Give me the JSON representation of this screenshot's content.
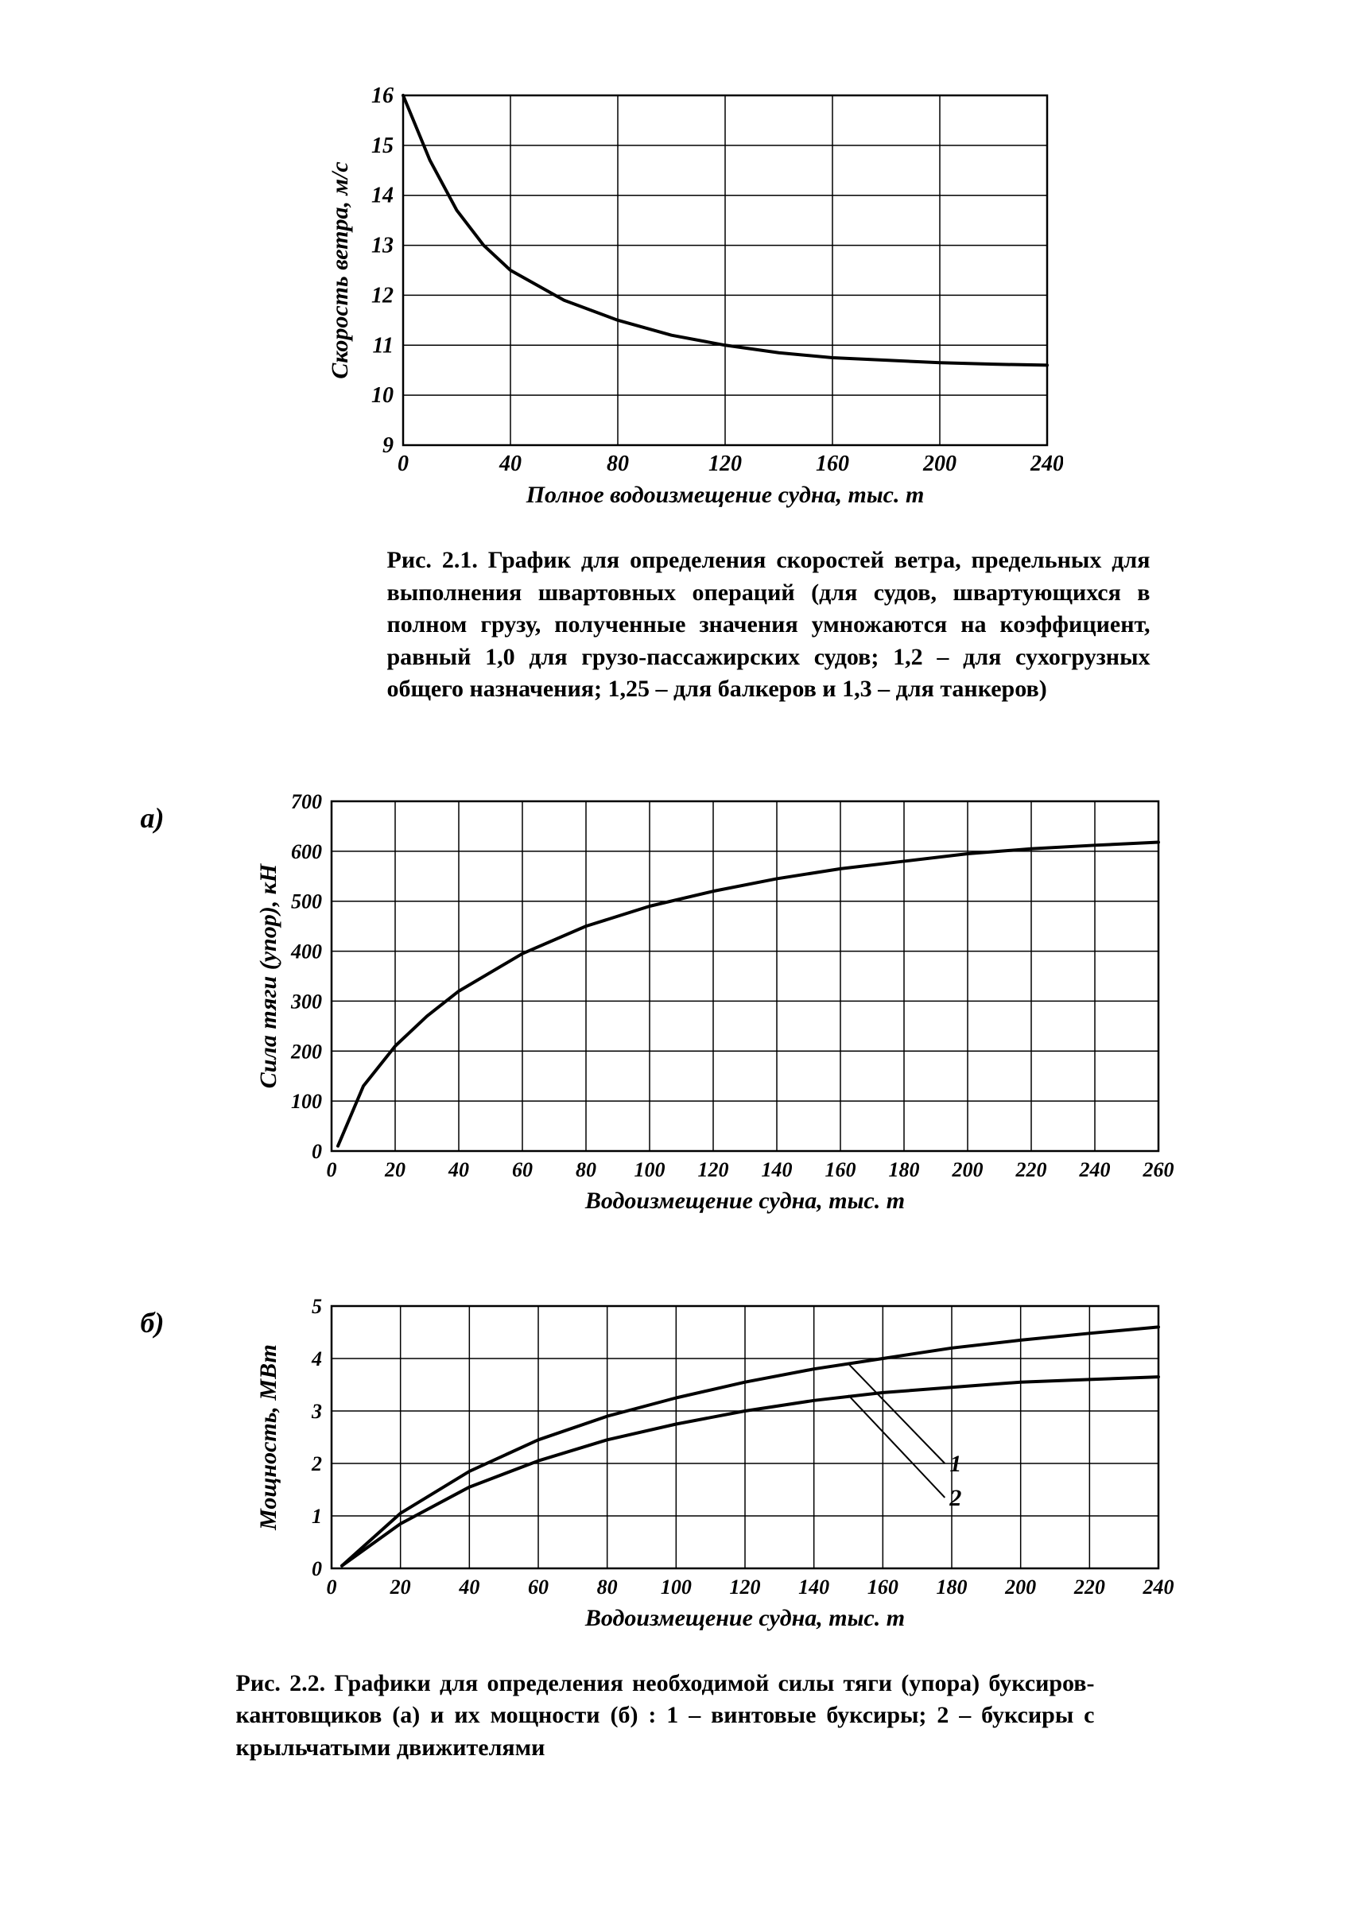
{
  "chart1": {
    "type": "line",
    "ylabel": "Скорость ветра, м/с",
    "xlabel": "Полное водоизмещение судна, тыс. т",
    "xticks": [
      0,
      40,
      80,
      120,
      160,
      200,
      240
    ],
    "yticks": [
      9,
      10,
      11,
      12,
      13,
      14,
      15,
      16
    ],
    "xlim": [
      0,
      240
    ],
    "ylim": [
      9,
      16
    ],
    "line_width": 4,
    "line_color": "#000000",
    "grid_color": "#000000",
    "grid_width": 1.5,
    "border_width": 2.5,
    "background": "#ffffff",
    "tick_fontsize": 28,
    "label_fontsize": 30,
    "data": [
      {
        "x": 0,
        "y": 16.0
      },
      {
        "x": 10,
        "y": 14.7
      },
      {
        "x": 20,
        "y": 13.7
      },
      {
        "x": 30,
        "y": 13.0
      },
      {
        "x": 40,
        "y": 12.5
      },
      {
        "x": 60,
        "y": 11.9
      },
      {
        "x": 80,
        "y": 11.5
      },
      {
        "x": 100,
        "y": 11.2
      },
      {
        "x": 120,
        "y": 11.0
      },
      {
        "x": 140,
        "y": 10.85
      },
      {
        "x": 160,
        "y": 10.75
      },
      {
        "x": 180,
        "y": 10.7
      },
      {
        "x": 200,
        "y": 10.65
      },
      {
        "x": 220,
        "y": 10.62
      },
      {
        "x": 240,
        "y": 10.6
      }
    ],
    "caption": "Рис. 2.1. График для определения скоростей ветра, предельных для выполнения швартовных операций (для судов, швартующихся в полном грузу, полученные значения умножаются на коэффициент, равный 1,0 для грузо-пассажирских судов; 1,2 – для сухогрузных общего назначения; 1,25 – для балкеров и 1,3 – для танкеров)"
  },
  "chart2a": {
    "type": "line",
    "panel_label": "а)",
    "ylabel": "Сила тяги (упор), кН",
    "xlabel": "Водоизмещение судна, тыс. т",
    "xticks": [
      0,
      20,
      40,
      60,
      80,
      100,
      120,
      140,
      160,
      180,
      200,
      220,
      240,
      260
    ],
    "yticks": [
      0,
      100,
      200,
      300,
      400,
      500,
      600,
      700
    ],
    "xlim": [
      0,
      260
    ],
    "ylim": [
      0,
      700
    ],
    "line_width": 4,
    "line_color": "#000000",
    "grid_color": "#000000",
    "grid_width": 1.5,
    "border_width": 2.5,
    "background": "#ffffff",
    "tick_fontsize": 26,
    "label_fontsize": 30,
    "data": [
      {
        "x": 2,
        "y": 10
      },
      {
        "x": 10,
        "y": 130
      },
      {
        "x": 20,
        "y": 210
      },
      {
        "x": 30,
        "y": 270
      },
      {
        "x": 40,
        "y": 320
      },
      {
        "x": 60,
        "y": 395
      },
      {
        "x": 80,
        "y": 450
      },
      {
        "x": 100,
        "y": 490
      },
      {
        "x": 120,
        "y": 520
      },
      {
        "x": 140,
        "y": 545
      },
      {
        "x": 160,
        "y": 565
      },
      {
        "x": 180,
        "y": 580
      },
      {
        "x": 200,
        "y": 595
      },
      {
        "x": 220,
        "y": 605
      },
      {
        "x": 240,
        "y": 612
      },
      {
        "x": 260,
        "y": 618
      }
    ]
  },
  "chart2b": {
    "type": "line",
    "panel_label": "б)",
    "ylabel": "Мощность, МВт",
    "xlabel": "Водоизмещение судна, тыс. т",
    "xticks": [
      0,
      20,
      40,
      60,
      80,
      100,
      120,
      140,
      160,
      180,
      200,
      220,
      240
    ],
    "yticks": [
      0,
      1,
      2,
      3,
      4,
      5
    ],
    "xlim": [
      0,
      240
    ],
    "ylim": [
      0,
      5
    ],
    "line_width": 4,
    "line_color": "#000000",
    "grid_color": "#000000",
    "grid_width": 1.5,
    "border_width": 2.5,
    "background": "#ffffff",
    "tick_fontsize": 26,
    "label_fontsize": 30,
    "series": [
      {
        "label": "1",
        "callout": {
          "x": 178,
          "y": 2.0,
          "tx": 150,
          "ty": 3.9
        },
        "data": [
          {
            "x": 3,
            "y": 0.05
          },
          {
            "x": 20,
            "y": 1.05
          },
          {
            "x": 40,
            "y": 1.85
          },
          {
            "x": 60,
            "y": 2.45
          },
          {
            "x": 80,
            "y": 2.9
          },
          {
            "x": 100,
            "y": 3.25
          },
          {
            "x": 120,
            "y": 3.55
          },
          {
            "x": 140,
            "y": 3.8
          },
          {
            "x": 160,
            "y": 4.0
          },
          {
            "x": 180,
            "y": 4.2
          },
          {
            "x": 200,
            "y": 4.35
          },
          {
            "x": 220,
            "y": 4.48
          },
          {
            "x": 240,
            "y": 4.6
          }
        ]
      },
      {
        "label": "2",
        "callout": {
          "x": 178,
          "y": 1.35,
          "tx": 150,
          "ty": 3.3
        },
        "data": [
          {
            "x": 3,
            "y": 0.05
          },
          {
            "x": 20,
            "y": 0.85
          },
          {
            "x": 40,
            "y": 1.55
          },
          {
            "x": 60,
            "y": 2.05
          },
          {
            "x": 80,
            "y": 2.45
          },
          {
            "x": 100,
            "y": 2.75
          },
          {
            "x": 120,
            "y": 3.0
          },
          {
            "x": 140,
            "y": 3.2
          },
          {
            "x": 160,
            "y": 3.35
          },
          {
            "x": 180,
            "y": 3.45
          },
          {
            "x": 200,
            "y": 3.55
          },
          {
            "x": 220,
            "y": 3.6
          },
          {
            "x": 240,
            "y": 3.65
          }
        ]
      }
    ],
    "caption": "Рис. 2.2. Графики для определения необходимой силы тяги (упора) буксиров-кантовщиков (а) и их мощности (б) : 1 – винтовые буксиры; 2 – буксиры с крыльчатыми движителями"
  }
}
